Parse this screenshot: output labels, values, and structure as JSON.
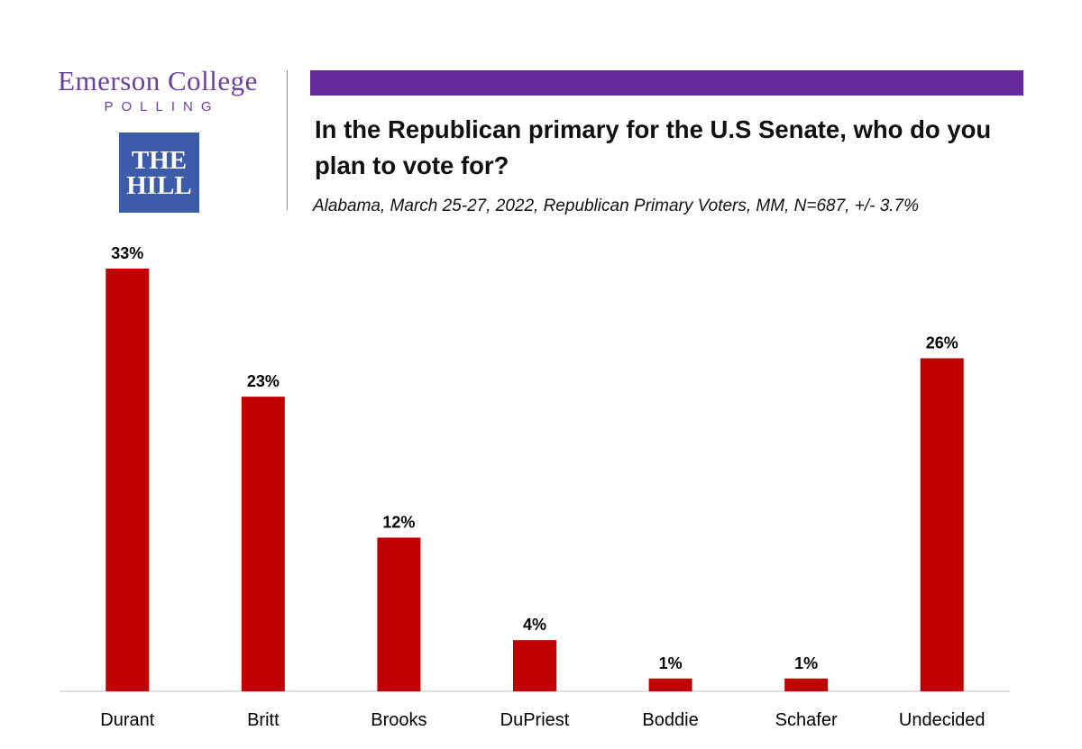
{
  "logos": {
    "emerson_name": "Emerson College",
    "emerson_sub": "POLLING",
    "hill_line1": "THE",
    "hill_line2": "HILL"
  },
  "header": {
    "title": "In the Republican primary for the U.S Senate, who do you plan to vote for?",
    "subtitle": "Alabama, March 25-27, 2022, Republican Primary Voters, MM, N=687, +/- 3.7%"
  },
  "colors": {
    "accent": "#652b9c",
    "bar": "#c00000",
    "emerson": "#6b3fa0",
    "hill": "#3c5ba8"
  },
  "chart_data": {
    "type": "bar",
    "title": "In the Republican primary for the U.S Senate, who do you plan to vote for?",
    "xlabel": "",
    "ylabel": "",
    "categories": [
      "Durant",
      "Britt",
      "Brooks",
      "DuPriest",
      "Boddie",
      "Schafer",
      "Undecided"
    ],
    "values": [
      33,
      23,
      12,
      4,
      1,
      1,
      26
    ],
    "value_labels": [
      "33%",
      "23%",
      "12%",
      "4%",
      "1%",
      "1%",
      "26%"
    ],
    "ylim": [
      0,
      33
    ],
    "grid": false,
    "legend": "none"
  }
}
